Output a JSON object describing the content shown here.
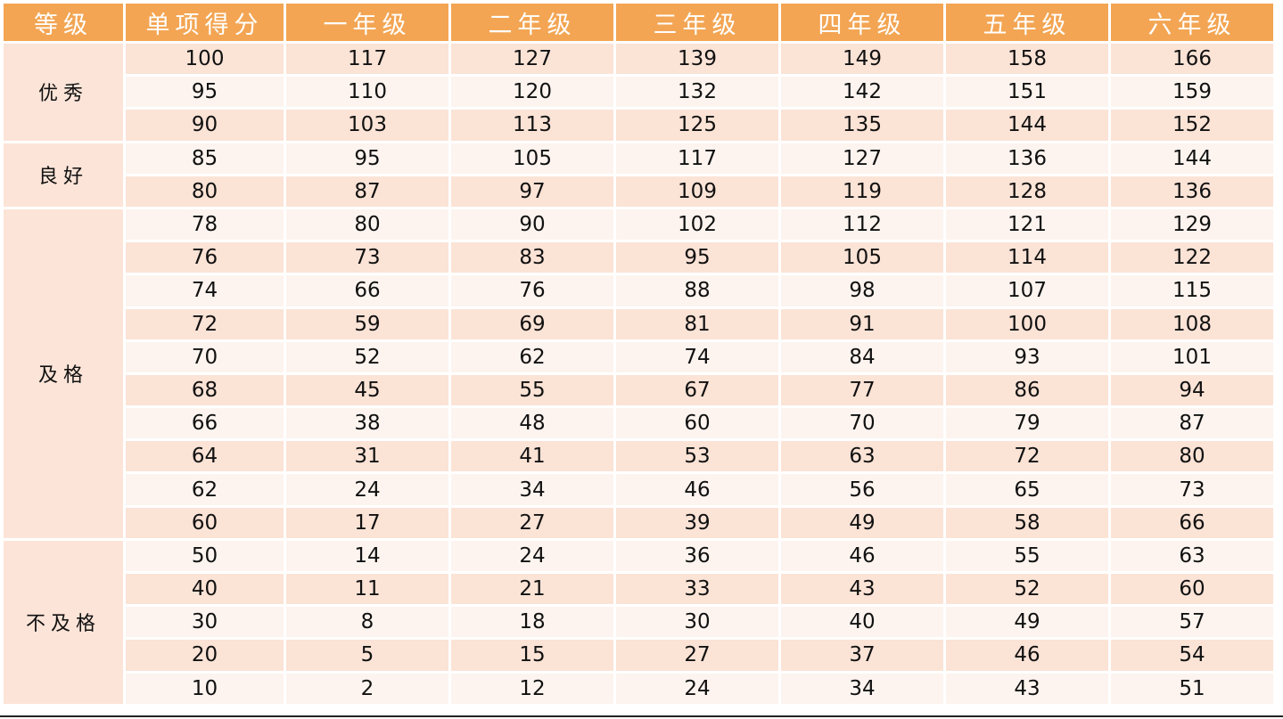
{
  "headers": [
    "等级",
    "单项得分",
    "一年级",
    "二年级",
    "三年级",
    "四年级",
    "五年级",
    "六年级"
  ],
  "groups": [
    {
      "grade": "优秀",
      "rows": [
        [
          "100",
          "117",
          "127",
          "139",
          "149",
          "158",
          "166"
        ],
        [
          "95",
          "110",
          "120",
          "132",
          "142",
          "151",
          "159"
        ],
        [
          "90",
          "103",
          "113",
          "125",
          "135",
          "144",
          "152"
        ]
      ]
    },
    {
      "grade": "良好",
      "rows": [
        [
          "85",
          "95",
          "105",
          "117",
          "127",
          "136",
          "144"
        ],
        [
          "80",
          "87",
          "97",
          "109",
          "119",
          "128",
          "136"
        ]
      ]
    },
    {
      "grade": "及格",
      "rows": [
        [
          "78",
          "80",
          "90",
          "102",
          "112",
          "121",
          "129"
        ],
        [
          "76",
          "73",
          "83",
          "95",
          "105",
          "114",
          "122"
        ],
        [
          "74",
          "66",
          "76",
          "88",
          "98",
          "107",
          "115"
        ],
        [
          "72",
          "59",
          "69",
          "81",
          "91",
          "100",
          "108"
        ],
        [
          "70",
          "52",
          "62",
          "74",
          "84",
          "93",
          "101"
        ],
        [
          "68",
          "45",
          "55",
          "67",
          "77",
          "86",
          "94"
        ],
        [
          "66",
          "38",
          "48",
          "60",
          "70",
          "79",
          "87"
        ],
        [
          "64",
          "31",
          "41",
          "53",
          "63",
          "72",
          "80"
        ],
        [
          "62",
          "24",
          "34",
          "46",
          "56",
          "65",
          "73"
        ],
        [
          "60",
          "17",
          "27",
          "39",
          "49",
          "58",
          "66"
        ]
      ]
    },
    {
      "grade": "不及格",
      "rows": [
        [
          "50",
          "14",
          "24",
          "36",
          "46",
          "55",
          "63"
        ],
        [
          "40",
          "11",
          "21",
          "33",
          "43",
          "52",
          "60"
        ],
        [
          "30",
          "8",
          "18",
          "30",
          "40",
          "49",
          "57"
        ],
        [
          "20",
          "5",
          "15",
          "27",
          "37",
          "46",
          "54"
        ],
        [
          "10",
          "2",
          "12",
          "24",
          "34",
          "43",
          "51"
        ]
      ]
    }
  ],
  "colors": {
    "header_bg": "#f3a553",
    "row_dark": "#fbe3d6",
    "row_light": "#fdf4ef",
    "grade_bg": "#fce4d8"
  }
}
